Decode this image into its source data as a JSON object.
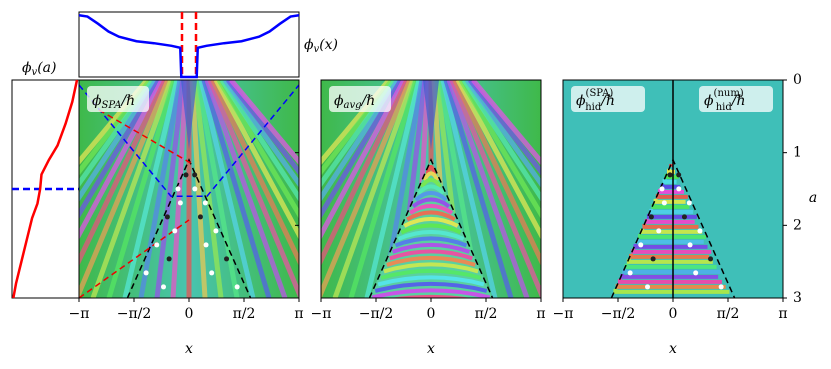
{
  "chart_data": [
    {
      "type": "line",
      "label": {
        "main": "ϕ",
        "sub": "v",
        "tail": "(x)"
      },
      "color": "#0000ff",
      "x": [
        -3.1416,
        -2.9,
        -2.6,
        -2.3,
        -2.0,
        -1.5,
        -1.0,
        -0.5,
        -0.25,
        -0.22,
        0.22,
        0.25,
        0.5,
        1.0,
        1.5,
        2.0,
        2.3,
        2.6,
        2.9,
        3.1416
      ],
      "values": [
        0.95,
        0.93,
        0.82,
        0.7,
        0.62,
        0.55,
        0.52,
        0.48,
        0.45,
        0.0,
        0.0,
        0.45,
        0.48,
        0.52,
        0.55,
        0.62,
        0.7,
        0.82,
        0.93,
        0.95
      ],
      "xlim": [
        -3.1416,
        3.1416
      ],
      "ylim": [
        0,
        1
      ],
      "vlines": [
        -0.2,
        0.2
      ],
      "vline_color": "#ff0000"
    },
    {
      "type": "line",
      "label": {
        "main": "ϕ",
        "sub": "v",
        "tail": "(a)"
      },
      "color": "#ff0000",
      "a": [
        0,
        0.3,
        0.6,
        0.9,
        1.1,
        1.3,
        1.5,
        1.7,
        1.9,
        2.2,
        2.5,
        2.8,
        3
      ],
      "values": [
        0.97,
        0.9,
        0.8,
        0.68,
        0.55,
        0.44,
        0.42,
        0.38,
        0.3,
        0.22,
        0.14,
        0.06,
        0.02
      ],
      "xlim": [
        0,
        1
      ],
      "ylim": [
        0,
        3
      ],
      "hline": 1.5,
      "hline_color": "#0000ff"
    },
    {
      "type": "heatmap",
      "labels": [
        {
          "main": "ϕ",
          "sub": "SPA",
          "tail": "/ℏ"
        }
      ],
      "xlabel": "x",
      "xlim": [
        -3.1416,
        3.1416
      ],
      "ylim": [
        0,
        3
      ],
      "xticks": [
        {
          "value": -3.1416,
          "label": "−π"
        },
        {
          "value": -1.5708,
          "label": "−π/2"
        },
        0,
        {
          "value": 1.5708,
          "label": "π/2"
        },
        {
          "value": 3.1416,
          "label": "π"
        }
      ]
    },
    {
      "type": "heatmap",
      "labels": [
        {
          "main": "ϕ",
          "sub": "avg",
          "tail": "/ℏ"
        }
      ],
      "xlabel": "x",
      "xlim": [
        -3.1416,
        3.1416
      ],
      "ylim": [
        0,
        3
      ],
      "xticks": [
        {
          "value": -3.1416,
          "label": "−π"
        },
        {
          "value": -1.5708,
          "label": "−π/2"
        },
        0,
        {
          "value": 1.5708,
          "label": "π/2"
        },
        {
          "value": 3.1416,
          "label": "π"
        }
      ]
    },
    {
      "type": "heatmap",
      "labels": [
        {
          "main": "ϕ",
          "sub": "hid",
          "sup": "(SPA)",
          "tail": "/ℏ"
        },
        {
          "main": "ϕ",
          "sub": "hid",
          "sup": "(num)",
          "tail": "/ℏ"
        }
      ],
      "xlabel": "x",
      "ylabel": "a",
      "xlim": [
        -3.1416,
        3.1416
      ],
      "ylim": [
        0,
        3
      ],
      "xticks": [
        {
          "value": -3.1416,
          "label": "−π"
        },
        {
          "value": -1.5708,
          "label": "−π/2"
        },
        0,
        {
          "value": 1.5708,
          "label": "π/2"
        },
        {
          "value": 3.1416,
          "label": "π"
        }
      ],
      "yticks": [
        0,
        1,
        2,
        3
      ]
    }
  ]
}
